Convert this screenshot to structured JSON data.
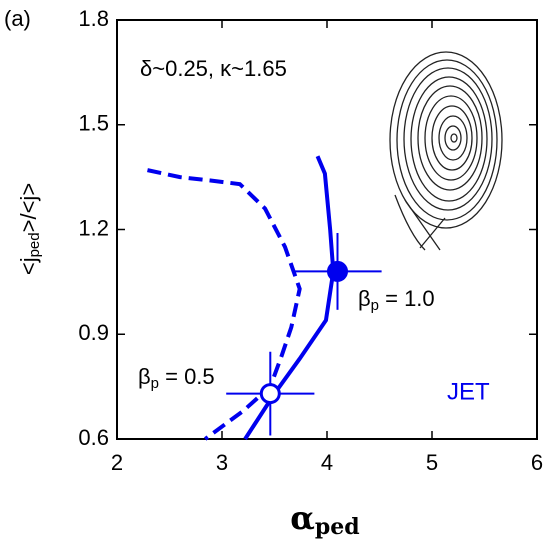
{
  "panel_label": "(a)",
  "chart_data": {
    "type": "line",
    "annotation": "δ~0.25, κ~1.65",
    "y_label": {
      "main": "<j",
      "sub": "ped",
      "tail": ">/<j>"
    },
    "x_label": {
      "main": "α",
      "sub": "ped"
    },
    "brand": "JET",
    "xlim": [
      2,
      6
    ],
    "xticks": [
      2,
      3,
      4,
      5,
      6
    ],
    "ylim": [
      0.6,
      1.8
    ],
    "yticks": [
      0.6,
      0.9,
      1.2,
      1.5,
      1.8
    ],
    "series": [
      {
        "label": {
          "main": "β",
          "sub": "p",
          "tail": " = 1.0"
        },
        "color": "#0000ee",
        "style": "solid",
        "x": [
          3.91,
          3.98,
          4.03,
          4.06,
          3.99,
          3.74,
          3.5,
          3.22
        ],
        "values": [
          1.41,
          1.36,
          1.2,
          1.08,
          0.94,
          0.83,
          0.73,
          0.6
        ],
        "point": {
          "x": 4.1,
          "y": 1.08,
          "xerr": 0.42,
          "yerr": 0.11,
          "filled": true
        }
      },
      {
        "label": {
          "main": "β",
          "sub": "p",
          "tail": " = 0.5"
        },
        "color": "#0000ee",
        "style": "dashed",
        "x": [
          2.29,
          2.6,
          2.9,
          3.17,
          3.41,
          3.6,
          3.74,
          3.66,
          3.57,
          3.46,
          3.2,
          2.84
        ],
        "values": [
          1.37,
          1.35,
          1.34,
          1.33,
          1.26,
          1.15,
          1.03,
          0.92,
          0.84,
          0.75,
          0.68,
          0.6
        ],
        "point": {
          "x": 3.46,
          "y": 0.73,
          "xerr": 0.42,
          "yerr": 0.12,
          "filled": false
        }
      }
    ]
  }
}
